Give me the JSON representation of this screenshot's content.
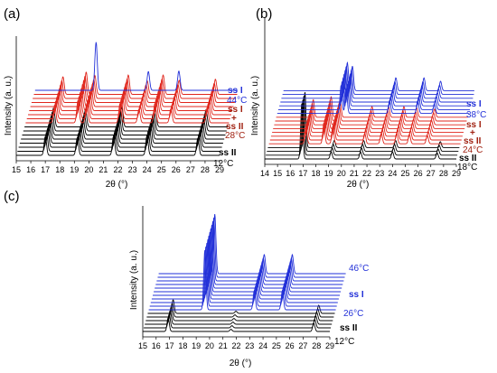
{
  "colors": {
    "blue": "#2230d8",
    "red": "#e0261c",
    "black": "#000000",
    "dark_red": "#a02010"
  },
  "chart_data": [
    {
      "type": "line",
      "panel_label": "(a)",
      "xlabel": "2θ (°)",
      "ylabel": "Intensity (a. u.)",
      "xlim": [
        15,
        29
      ],
      "xticks": [
        "15",
        "16",
        "17",
        "18",
        "19",
        "20",
        "21",
        "22",
        "23",
        "24",
        "25",
        "26",
        "27",
        "28",
        "29"
      ],
      "annotations": [
        {
          "text": "ss I",
          "color": "blue",
          "bold": true
        },
        {
          "text": "44°C",
          "color": "blue",
          "bold": false
        },
        {
          "text": "ss I",
          "color": "dark_red",
          "bold": true
        },
        {
          "text": "+",
          "color": "dark_red",
          "bold": true
        },
        {
          "text": "ss II",
          "color": "dark_red",
          "bold": true
        },
        {
          "text": "28°C",
          "color": "dark_red",
          "bold": false
        },
        {
          "text": "ss II",
          "color": "black",
          "bold": true
        },
        {
          "text": "12°C",
          "color": "black",
          "bold": false
        }
      ],
      "groups": [
        {
          "color": "black",
          "count": 8,
          "peaks": [
            [
              17.0,
              3.2
            ],
            [
              19.2,
              3.0
            ],
            [
              21.7,
              3.3
            ],
            [
              24.0,
              3.4
            ],
            [
              27.5,
              2.9
            ]
          ]
        },
        {
          "color": "red",
          "count": 8,
          "peaks": [
            [
              17.0,
              3.0
            ],
            [
              18.6,
              3.8
            ],
            [
              19.2,
              3.2
            ],
            [
              21.5,
              3.3
            ],
            [
              22.8,
              2.3
            ],
            [
              23.9,
              3.3
            ],
            [
              25.0,
              2.4
            ],
            [
              27.5,
              2.6
            ]
          ]
        },
        {
          "color": "blue",
          "count": 1,
          "peaks": [
            [
              19.2,
              8.2
            ],
            [
              22.8,
              3.2
            ],
            [
              24.9,
              3.3
            ]
          ]
        }
      ]
    },
    {
      "type": "line",
      "panel_label": "(b)",
      "xlabel": "2θ (°)",
      "ylabel": "Intensity (a. u.)",
      "xlim": [
        14,
        29
      ],
      "xticks": [
        "14",
        "15",
        "16",
        "17",
        "18",
        "19",
        "20",
        "21",
        "22",
        "23",
        "24",
        "25",
        "26",
        "27",
        "28",
        "29"
      ],
      "annotations": [
        {
          "text": "ss I",
          "color": "blue",
          "bold": true
        },
        {
          "text": "38°C",
          "color": "blue",
          "bold": false
        },
        {
          "text": "ss I",
          "color": "dark_red",
          "bold": true
        },
        {
          "text": "+",
          "color": "dark_red",
          "bold": true
        },
        {
          "text": "ss II",
          "color": "dark_red",
          "bold": true
        },
        {
          "text": "24°C",
          "color": "dark_red",
          "bold": false
        },
        {
          "text": "ss II",
          "color": "black",
          "bold": true
        },
        {
          "text": "18°C",
          "color": "black",
          "bold": false
        }
      ],
      "groups": [
        {
          "color": "black",
          "count": 4,
          "peaks": [
            [
              16.9,
              9.5
            ],
            [
              19.2,
              1.2
            ],
            [
              21.5,
              1.2
            ],
            [
              24.0,
              1.2
            ],
            [
              27.5,
              1.0
            ]
          ]
        },
        {
          "color": "red",
          "count": 8,
          "peaks": [
            [
              16.9,
              3.0
            ],
            [
              18.3,
              3.5
            ],
            [
              19.0,
              3.0
            ],
            [
              21.5,
              1.8
            ],
            [
              22.8,
              1.8
            ],
            [
              24.0,
              1.8
            ],
            [
              25.0,
              1.6
            ],
            [
              26.4,
              1.4
            ]
          ]
        },
        {
          "color": "blue",
          "count": 7,
          "peaks": [
            [
              19.0,
              4.8
            ],
            [
              19.4,
              4.2
            ],
            [
              22.8,
              2.2
            ],
            [
              25.0,
              2.2
            ],
            [
              26.3,
              1.6
            ]
          ]
        }
      ]
    },
    {
      "type": "line",
      "panel_label": "(c)",
      "xlabel": "2θ (°)",
      "ylabel": "Intensity (a. u.)",
      "xlim": [
        15,
        29
      ],
      "xticks": [
        "15",
        "16",
        "17",
        "18",
        "19",
        "20",
        "21",
        "22",
        "23",
        "24",
        "25",
        "26",
        "27",
        "28",
        "29"
      ],
      "annotations": [
        {
          "text": "46°C",
          "color": "blue",
          "bold": false
        },
        {
          "text": "ss I",
          "color": "blue",
          "bold": true
        },
        {
          "text": "26°C",
          "color": "blue",
          "bold": false
        },
        {
          "text": "ss II",
          "color": "black",
          "bold": true
        },
        {
          "text": "12°C",
          "color": "black",
          "bold": false
        }
      ],
      "groups": [
        {
          "color": "black",
          "count": 6,
          "peaks": [
            [
              16.9,
              2.5
            ],
            [
              21.6,
              0.4
            ],
            [
              27.8,
              1.5
            ]
          ]
        },
        {
          "color": "blue",
          "count": 11,
          "peaks": [
            [
              19.2,
              11.0
            ],
            [
              22.9,
              3.5
            ],
            [
              25.0,
              3.5
            ]
          ]
        }
      ]
    }
  ]
}
